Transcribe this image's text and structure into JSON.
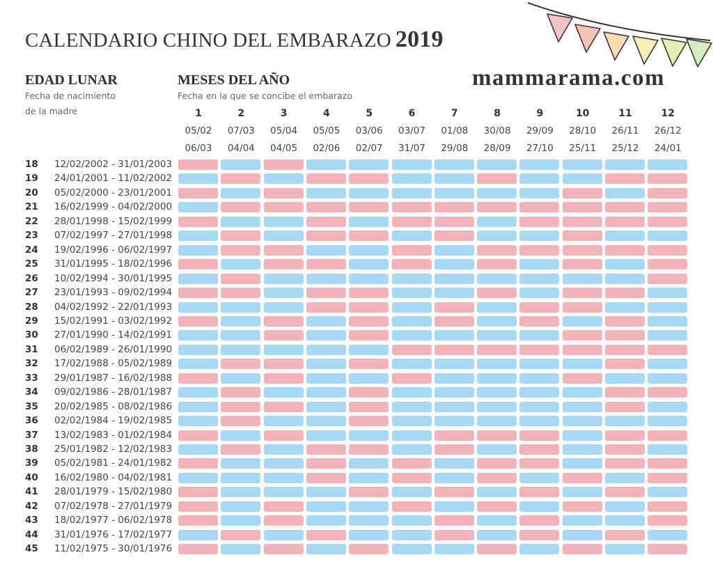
{
  "header": {
    "title": "CALENDARIO CHINO DEL EMBARAZO",
    "year": "2019",
    "site": "mammarama.com"
  },
  "left_section": {
    "title": "EDAD LUNAR",
    "subtitle_line1": "Fecha de nacimiento",
    "subtitle_line2": "de la madre"
  },
  "right_section": {
    "title": "MESES DEL AÑO",
    "subtitle": "Fecha en la que se concibe el embarazo"
  },
  "colors": {
    "pink": "#f3b3bb",
    "blue": "#a8d9f4"
  },
  "legend_note": "P = pink cell, B = blue cell",
  "bunting_colors": [
    "#f6c1c9",
    "#f8c3b6",
    "#f9dcb5",
    "#f5eeb8",
    "#e3efb6",
    "#d6eebf"
  ],
  "months": [
    {
      "num": "1",
      "start": "05/02",
      "end": "06/03"
    },
    {
      "num": "2",
      "start": "07/03",
      "end": "04/04"
    },
    {
      "num": "3",
      "start": "05/04",
      "end": "04/05"
    },
    {
      "num": "4",
      "start": "05/05",
      "end": "02/06"
    },
    {
      "num": "5",
      "start": "03/06",
      "end": "02/07"
    },
    {
      "num": "6",
      "start": "03/07",
      "end": "31/07"
    },
    {
      "num": "7",
      "start": "01/08",
      "end": "29/08"
    },
    {
      "num": "8",
      "start": "30/08",
      "end": "28/09"
    },
    {
      "num": "9",
      "start": "29/09",
      "end": "27/10"
    },
    {
      "num": "10",
      "start": "28/10",
      "end": "25/11"
    },
    {
      "num": "11",
      "start": "26/11",
      "end": "25/12"
    },
    {
      "num": "12",
      "start": "26/12",
      "end": "24/01"
    }
  ],
  "rows": [
    {
      "age": "18",
      "range": "12/02/2002 - 31/01/2003",
      "cells": "PBPBBBBBBBBB"
    },
    {
      "age": "19",
      "range": "24/01/2001 - 11/02/2002",
      "cells": "BPBPPBBPBBPP"
    },
    {
      "age": "20",
      "range": "05/02/2000 - 23/01/2001",
      "cells": "PBPBBBBBBPBP"
    },
    {
      "age": "21",
      "range": "16/02/1999 - 04/02/2000",
      "cells": "BPPPPPPPPPPP"
    },
    {
      "age": "22",
      "range": "28/01/1998 - 15/02/1999",
      "cells": "PBBPBPPBPPPP"
    },
    {
      "age": "23",
      "range": "07/02/1997 - 27/01/1998",
      "cells": "BPBPPBPBBPBB"
    },
    {
      "age": "24",
      "range": "19/02/1996 - 06/02/1997",
      "cells": "BPPBBPBPPPPP"
    },
    {
      "age": "25",
      "range": "31/01/1995 - 18/02/1996",
      "cells": "PBPPBPBPBPBP"
    },
    {
      "age": "26",
      "range": "10/02/1994 - 30/01/1995",
      "cells": "BPBBBBBBBBBP"
    },
    {
      "age": "27",
      "range": "23/01/1993 - 09/02/1994",
      "cells": "PPBPPBBPBPPB"
    },
    {
      "age": "28",
      "range": "04/02/1992 - 22/01/1993",
      "cells": "BBBPPBPBPPBB"
    },
    {
      "age": "29",
      "range": "15/02/1991 - 03/02/1992",
      "cells": "PBPBPBPBPBPB"
    },
    {
      "age": "30",
      "range": "27/01/1990 - 14/02/1991",
      "cells": "BBPBPBBBBPPB"
    },
    {
      "age": "31",
      "range": "06/02/1989 - 26/01/1990",
      "cells": "BBBBBPPPPPPP"
    },
    {
      "age": "32",
      "range": "17/02/1988 - 05/02/1989",
      "cells": "BPPBPBBBBBPB"
    },
    {
      "age": "33",
      "range": "29/01/1987 - 16/02/1988",
      "cells": "PBPBBPBBBPBB"
    },
    {
      "age": "34",
      "range": "09/02/1986 - 28/01/1987",
      "cells": "BPBBPBBBBBPP"
    },
    {
      "age": "35",
      "range": "20/02/1985 - 08/02/1986",
      "cells": "BPPBPBBBBBPB"
    },
    {
      "age": "36",
      "range": "02/02/1984 - 19/02/1985",
      "cells": "BPBBPBBBBBBB"
    },
    {
      "age": "37",
      "range": "13/02/1983 - 01/02/1984",
      "cells": "PBPBBBPPPBPP"
    },
    {
      "age": "38",
      "range": "25/01/1982 - 12/02/1983",
      "cells": "BPBPPBPBPBPB"
    },
    {
      "age": "39",
      "range": "05/02/1981 - 24/01/1982",
      "cells": "PBBPBPBPPBPP"
    },
    {
      "age": "40",
      "range": "16/02/1980 - 04/02/1981",
      "cells": "BBBPBPBPBPBP"
    },
    {
      "age": "41",
      "range": "28/01/1979 - 15/02/1980",
      "cells": "PBBBPBPBPBPB"
    },
    {
      "age": "42",
      "range": "07/02/1978 - 27/01/1979",
      "cells": "PBPBBPBPBPBP"
    },
    {
      "age": "43",
      "range": "18/02/1977 - 06/02/1978",
      "cells": "PBPBBBPBPBBP"
    },
    {
      "age": "44",
      "range": "31/01/1976 - 17/02/1977",
      "cells": "BPBPBBPBPBPB"
    },
    {
      "age": "45",
      "range": "11/02/1975 - 30/01/1976",
      "cells": "PBPBPBBPBPBP"
    }
  ]
}
